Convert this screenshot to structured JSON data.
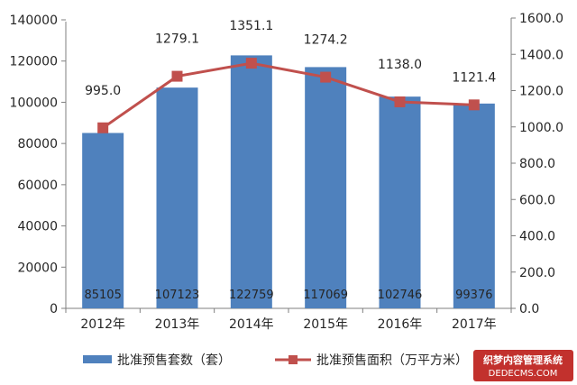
{
  "chart_data": {
    "type": "bar",
    "categories": [
      "2012年",
      "2013年",
      "2014年",
      "2015年",
      "2016年",
      "2017年"
    ],
    "series": [
      {
        "name": "批准预售套数（套）",
        "type": "bar",
        "axis": "left",
        "color": "#4f81bd",
        "values": [
          85105,
          107123,
          122759,
          117069,
          102746,
          99376
        ]
      },
      {
        "name": "批准预售面积（万平方米）",
        "type": "line",
        "axis": "right",
        "color": "#c0504d",
        "values": [
          995.0,
          1279.1,
          1351.1,
          1274.2,
          1138.0,
          1121.4
        ]
      }
    ],
    "y_left": {
      "ticks": [
        "0",
        "20000",
        "40000",
        "60000",
        "80000",
        "100000",
        "120000",
        "140000"
      ],
      "ylim": [
        0,
        140000
      ]
    },
    "y_right": {
      "ticks": [
        "0.0",
        "200.0",
        "400.0",
        "600.0",
        "800.0",
        "1000.0",
        "1200.0",
        "1400.0",
        "1600.0"
      ],
      "ylim": [
        0,
        1600
      ]
    },
    "bar_labels": [
      "85105",
      "107123",
      "122759",
      "117069",
      "102746",
      "99376"
    ],
    "line_labels": [
      "995.0",
      "1279.1",
      "1351.1",
      "1274.2",
      "1138.0",
      "1121.4"
    ],
    "legend_position": "bottom",
    "grid": false
  },
  "watermark": {
    "line1": "织梦内容管理系统",
    "line2": "DEDECMS.COM"
  }
}
